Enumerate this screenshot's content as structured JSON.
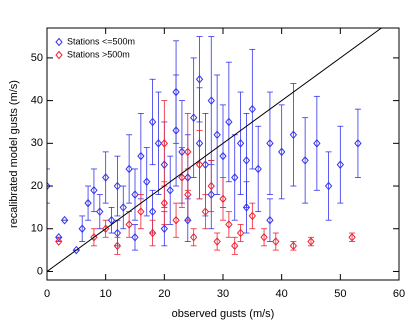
{
  "chart_data": {
    "type": "scatter",
    "xlabel": "observed gusts (m/s)",
    "ylabel": "recalibrated model gusts (m/s)",
    "xlim": [
      0,
      60
    ],
    "ylim": [
      -2,
      57
    ],
    "xticks": [
      0,
      10,
      20,
      30,
      40,
      50,
      60
    ],
    "yticks": [
      0,
      10,
      20,
      30,
      40,
      50
    ],
    "identity_line": true,
    "legend": "top-left",
    "series": [
      {
        "name": "Stations <=500m",
        "color": "#3333ee",
        "x": [
          2,
          3,
          5,
          6,
          7,
          8,
          9,
          10,
          11,
          12,
          13,
          14,
          15,
          16,
          17,
          18,
          19,
          20,
          21,
          22,
          23,
          24,
          25,
          26,
          27,
          28,
          29,
          30,
          31,
          32,
          33,
          34,
          35,
          36,
          38,
          40,
          42,
          44,
          46,
          48,
          50,
          53,
          18,
          22,
          26,
          15,
          20,
          24,
          12,
          28,
          34,
          38,
          0
        ],
        "values": [
          8,
          12,
          5,
          10,
          16,
          19,
          14,
          22,
          12,
          20,
          15,
          24,
          18,
          27,
          21,
          14,
          30,
          25,
          19,
          33,
          28,
          22,
          36,
          30,
          25,
          40,
          32,
          27,
          35,
          22,
          30,
          26,
          38,
          24,
          30,
          28,
          32,
          26,
          30,
          20,
          25,
          30,
          35,
          42,
          45,
          8,
          10,
          12,
          9,
          18,
          15,
          12,
          20
        ],
        "errors": [
          0,
          0,
          0,
          3,
          4,
          5,
          4,
          6,
          3,
          7,
          5,
          8,
          6,
          10,
          8,
          5,
          12,
          10,
          8,
          13,
          12,
          10,
          14,
          13,
          12,
          15,
          14,
          12,
          14,
          10,
          12,
          11,
          14,
          10,
          12,
          11,
          12,
          10,
          11,
          8,
          9,
          8,
          10,
          12,
          10,
          3,
          4,
          5,
          3,
          8,
          6,
          5,
          4
        ]
      },
      {
        "name": "Stations >500m",
        "color": "#ee2233",
        "x": [
          2,
          8,
          10,
          12,
          14,
          16,
          18,
          20,
          22,
          23,
          24,
          25,
          26,
          27,
          28,
          29,
          30,
          31,
          32,
          33,
          35,
          37,
          39,
          42,
          45,
          52,
          20,
          24
        ],
        "values": [
          7,
          8,
          10,
          6,
          11,
          14,
          9,
          16,
          12,
          22,
          18,
          8,
          25,
          14,
          20,
          7,
          17,
          11,
          6,
          9,
          13,
          8,
          7,
          6,
          7,
          8,
          30,
          28
        ],
        "errors": [
          0,
          2,
          2,
          2,
          3,
          4,
          3,
          5,
          4,
          7,
          6,
          2,
          8,
          4,
          6,
          2,
          5,
          3,
          2,
          2,
          3,
          2,
          2,
          1,
          1,
          1,
          10,
          9
        ]
      }
    ]
  }
}
